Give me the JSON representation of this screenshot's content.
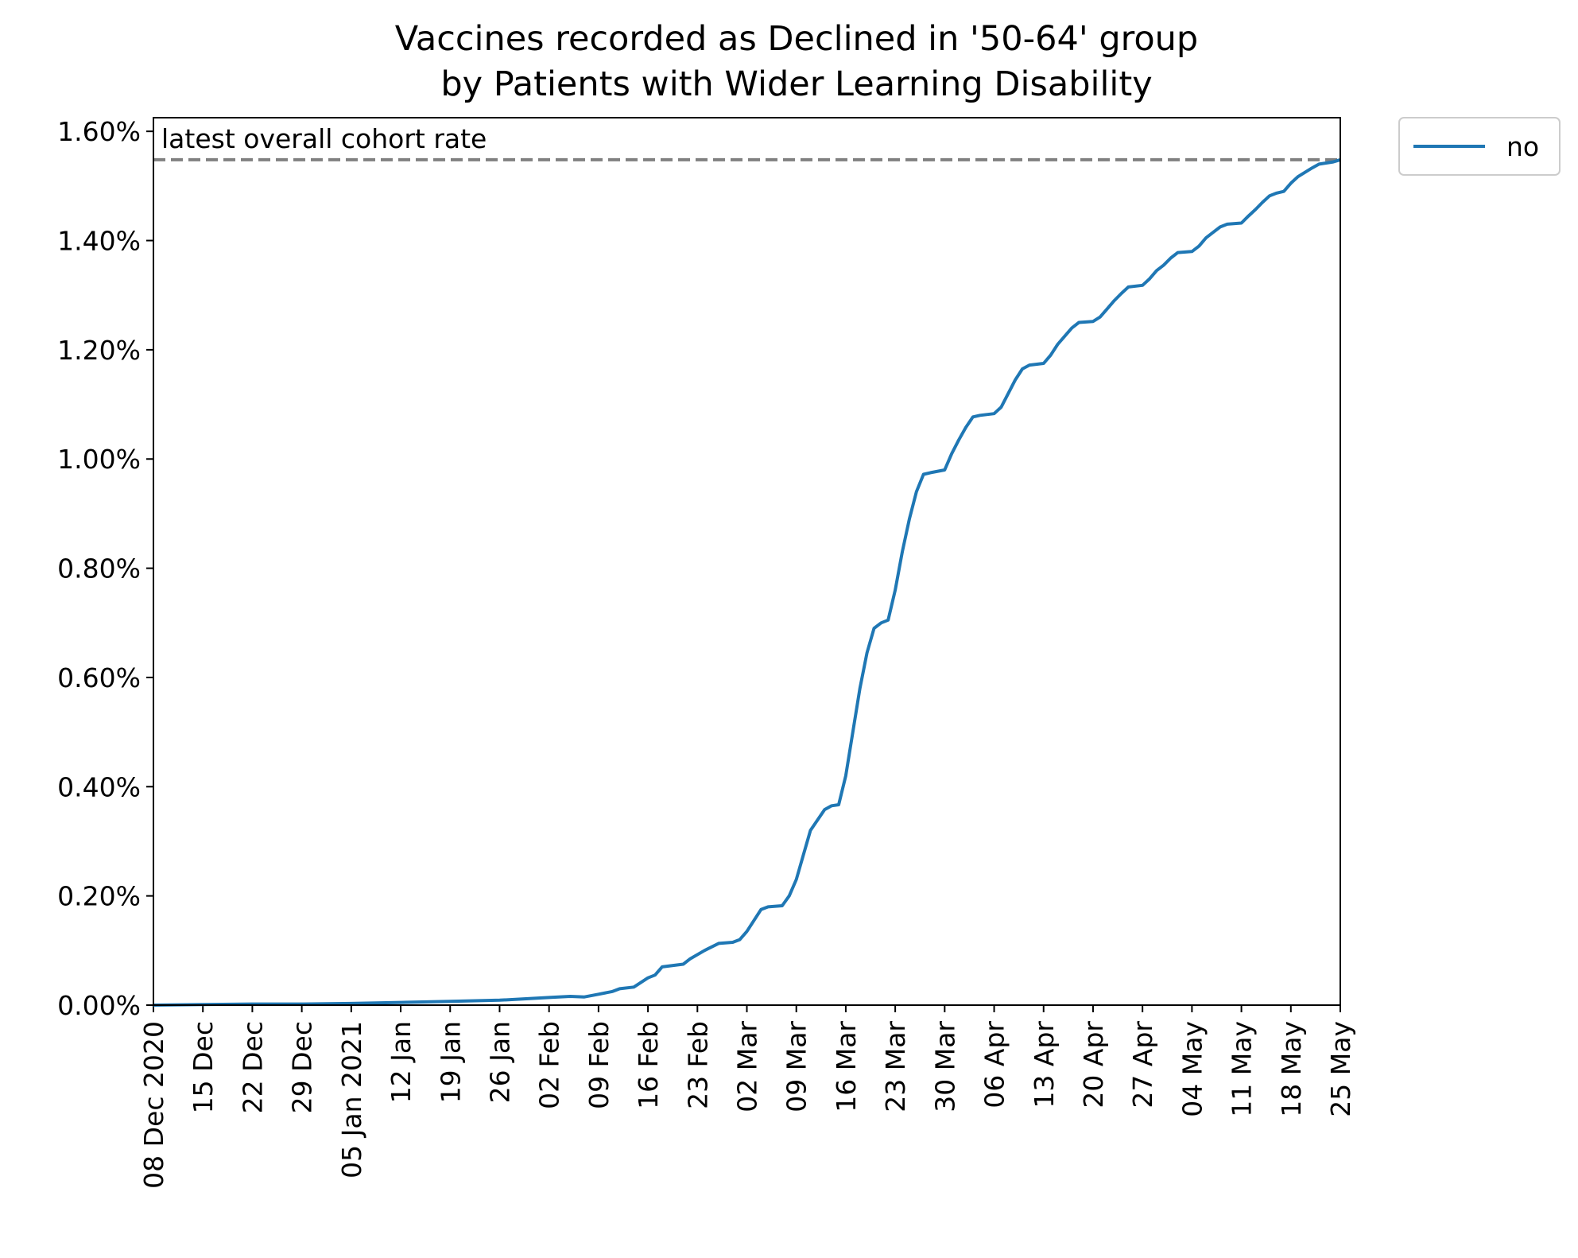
{
  "chart_data": {
    "type": "line",
    "title": "Vaccines recorded as Declined in '50-64' group",
    "subtitle": "by Patients with Wider Learning Disability",
    "xlabel": "",
    "ylabel": "",
    "x_range_days": [
      0,
      168
    ],
    "ylim": [
      0,
      1.625
    ],
    "x_tick_days": [
      0,
      7,
      14,
      21,
      28,
      35,
      42,
      49,
      56,
      63,
      70,
      77,
      84,
      91,
      98,
      105,
      112,
      119,
      126,
      133,
      140,
      147,
      154,
      161,
      168
    ],
    "x_tick_labels": [
      "08 Dec 2020",
      "15 Dec",
      "22 Dec",
      "29 Dec",
      "05 Jan 2021",
      "12 Jan",
      "19 Jan",
      "26 Jan",
      "02 Feb",
      "09 Feb",
      "16 Feb",
      "23 Feb",
      "02 Mar",
      "09 Mar",
      "16 Mar",
      "23 Mar",
      "30 Mar",
      "06 Apr",
      "13 Apr",
      "20 Apr",
      "27 Apr",
      "04 May",
      "11 May",
      "18 May",
      "25 May"
    ],
    "y_ticks": [
      0,
      0.2,
      0.4,
      0.6,
      0.8,
      1.0,
      1.2,
      1.4,
      1.6
    ],
    "y_tick_labels": [
      "0.00%",
      "0.20%",
      "0.40%",
      "0.60%",
      "0.80%",
      "1.00%",
      "1.20%",
      "1.40%",
      "1.60%"
    ],
    "reference_line": {
      "value": 1.548,
      "label": "latest overall cohort rate",
      "color": "#808080",
      "style": "dashed"
    },
    "legend": {
      "position": "outside-top-right",
      "entries": [
        "no"
      ]
    },
    "series": [
      {
        "name": "no",
        "color": "#1f77b4",
        "x_days": [
          0,
          7,
          14,
          21,
          28,
          35,
          42,
          49,
          52,
          56,
          59,
          61,
          63,
          65,
          66,
          68,
          70,
          71,
          72,
          75,
          76,
          78,
          80,
          82,
          83,
          84,
          86,
          87,
          89,
          90,
          91,
          92,
          93,
          95,
          96,
          97,
          98,
          99,
          100,
          101,
          102,
          103,
          104,
          105,
          106,
          107,
          108,
          109,
          110,
          112,
          113,
          114,
          115,
          116,
          117,
          119,
          120,
          121,
          122,
          123,
          124,
          126,
          127,
          128,
          129,
          130,
          131,
          133,
          134,
          135,
          136,
          137,
          138,
          140,
          141,
          142,
          143,
          144,
          145,
          147,
          148,
          149,
          150,
          151,
          152,
          154,
          155,
          156,
          157,
          158,
          159,
          160,
          161,
          162,
          163,
          164,
          165,
          166,
          167,
          168
        ],
        "values": [
          0.0,
          0.001,
          0.002,
          0.002,
          0.003,
          0.005,
          0.007,
          0.009,
          0.011,
          0.014,
          0.016,
          0.015,
          0.02,
          0.025,
          0.03,
          0.033,
          0.05,
          0.055,
          0.07,
          0.075,
          0.085,
          0.1,
          0.113,
          0.115,
          0.12,
          0.135,
          0.175,
          0.18,
          0.182,
          0.2,
          0.23,
          0.275,
          0.32,
          0.358,
          0.365,
          0.367,
          0.42,
          0.5,
          0.58,
          0.645,
          0.69,
          0.7,
          0.705,
          0.76,
          0.83,
          0.89,
          0.94,
          0.972,
          0.975,
          0.98,
          1.01,
          1.035,
          1.058,
          1.077,
          1.08,
          1.083,
          1.095,
          1.12,
          1.145,
          1.165,
          1.172,
          1.175,
          1.19,
          1.21,
          1.225,
          1.24,
          1.25,
          1.252,
          1.26,
          1.275,
          1.29,
          1.303,
          1.315,
          1.318,
          1.33,
          1.345,
          1.355,
          1.368,
          1.378,
          1.38,
          1.39,
          1.405,
          1.415,
          1.425,
          1.43,
          1.432,
          1.445,
          1.457,
          1.47,
          1.482,
          1.487,
          1.49,
          1.505,
          1.517,
          1.525,
          1.533,
          1.54,
          1.542,
          1.544,
          1.548
        ]
      }
    ]
  }
}
